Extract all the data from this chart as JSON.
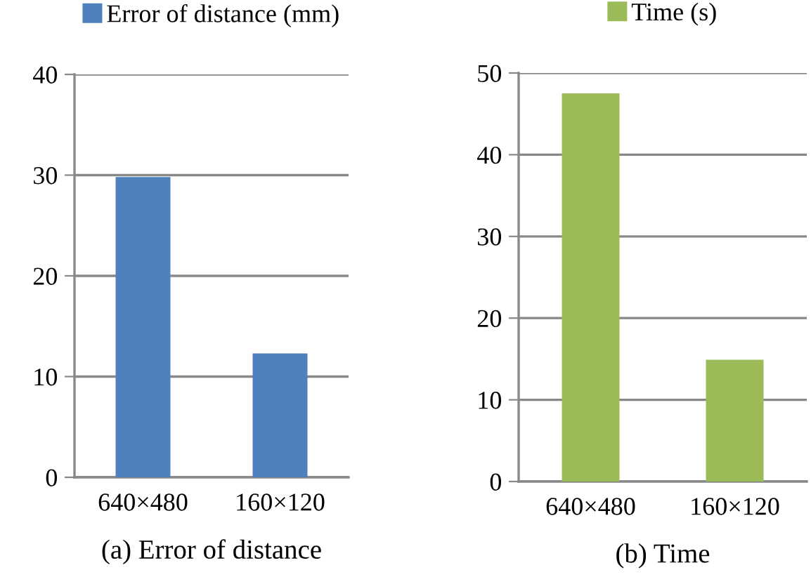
{
  "chart_data": [
    {
      "type": "bar",
      "xlabel": "(a) Error of distance",
      "categories": [
        "640×480",
        "160×120"
      ],
      "series": [
        {
          "name": "Error of distance (mm)",
          "color": "#4f81bd",
          "values": [
            29.8,
            12.3
          ]
        }
      ],
      "ylim": [
        0,
        40
      ],
      "yticks": [
        0,
        10,
        20,
        30,
        40
      ],
      "grid": "y",
      "legend": "top"
    },
    {
      "type": "bar",
      "xlabel": "(b) Time",
      "categories": [
        "640×480",
        "160×120"
      ],
      "series": [
        {
          "name": "Time (s)",
          "color": "#9bbb59",
          "values": [
            47.5,
            14.9
          ]
        }
      ],
      "ylim": [
        0,
        50
      ],
      "yticks": [
        0,
        10,
        20,
        30,
        40,
        50
      ],
      "grid": "y",
      "legend": "top"
    }
  ]
}
